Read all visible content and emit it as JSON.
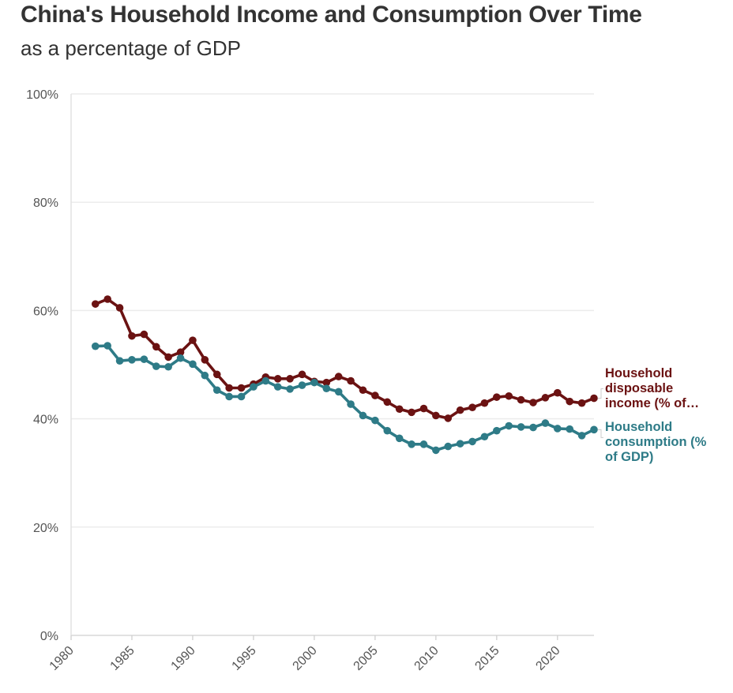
{
  "chart_data": {
    "type": "line",
    "title": "China's Household Income and Consumption Over Time",
    "subtitle": "as a percentage of GDP",
    "xlabel": "",
    "ylabel": "",
    "xlim": [
      1980,
      2023
    ],
    "ylim": [
      0,
      100
    ],
    "x_ticks": [
      1980,
      1985,
      1990,
      1995,
      2000,
      2005,
      2010,
      2015,
      2020
    ],
    "y_ticks": [
      0,
      20,
      40,
      60,
      80,
      100
    ],
    "y_tick_labels": [
      "0%",
      "20%",
      "40%",
      "60%",
      "80%",
      "100%"
    ],
    "grid": "horizontal",
    "legend": "direct labels at right end of lines",
    "x": [
      1982,
      1983,
      1984,
      1985,
      1986,
      1987,
      1988,
      1989,
      1990,
      1991,
      1992,
      1993,
      1994,
      1995,
      1996,
      1997,
      1998,
      1999,
      2000,
      2001,
      2002,
      2003,
      2004,
      2005,
      2006,
      2007,
      2008,
      2009,
      2010,
      2011,
      2012,
      2013,
      2014,
      2015,
      2016,
      2017,
      2018,
      2019,
      2020,
      2021,
      2022,
      2023
    ],
    "series": [
      {
        "name": "Household disposable income (% of GDP)",
        "label_lines": [
          "Household",
          "disposable",
          "income (% of…"
        ],
        "color": "#6b1212",
        "values": [
          61.2,
          62.1,
          60.5,
          55.3,
          55.6,
          53.3,
          51.4,
          52.3,
          54.5,
          50.9,
          48.2,
          45.7,
          45.7,
          46.4,
          47.7,
          47.4,
          47.4,
          48.2,
          46.9,
          46.7,
          47.8,
          47.0,
          45.3,
          44.3,
          43.1,
          41.8,
          41.2,
          41.9,
          40.6,
          40.1,
          41.6,
          42.1,
          42.9,
          44.0,
          44.2,
          43.5,
          43.0,
          43.9,
          44.8,
          43.2,
          42.9,
          43.8
        ]
      },
      {
        "name": "Household consumption (% of GDP)",
        "label_lines": [
          "Household",
          "consumption (%",
          "of GDP)"
        ],
        "color": "#2e7b87",
        "values": [
          53.4,
          53.5,
          50.7,
          50.9,
          51.0,
          49.7,
          49.6,
          51.2,
          50.1,
          48.0,
          45.3,
          44.1,
          44.1,
          45.9,
          47.0,
          45.9,
          45.5,
          46.2,
          46.7,
          45.6,
          45.0,
          42.7,
          40.6,
          39.7,
          37.8,
          36.4,
          35.3,
          35.3,
          34.2,
          34.9,
          35.4,
          35.8,
          36.7,
          37.8,
          38.7,
          38.5,
          38.4,
          39.2,
          38.2,
          38.1,
          36.9,
          38.0
        ]
      }
    ]
  }
}
